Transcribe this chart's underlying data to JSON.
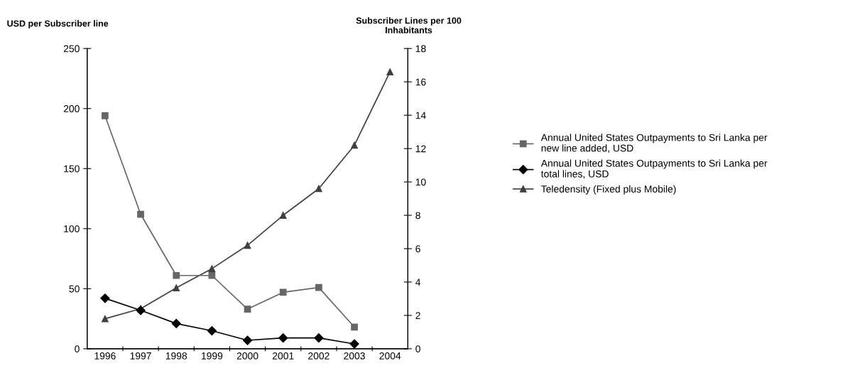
{
  "chart_data": {
    "type": "line",
    "ylabel": "USD per Subscriber line",
    "y2label": "Subscriber Lines per 100 Inhabitants",
    "categories": [
      "1996",
      "1997",
      "1998",
      "1999",
      "2000",
      "2001",
      "2002",
      "2003",
      "2004"
    ],
    "series": [
      {
        "name": "Annual United States Outpayments to Sri Lanka per new line added, USD",
        "color": "#666666",
        "marker": "square",
        "values": [
          194,
          112,
          61,
          61,
          33,
          47,
          51,
          18,
          null
        ]
      },
      {
        "name": "Annual United States Outpayments to Sri Lanka per total lines, USD",
        "color": "#000000",
        "marker": "diamond",
        "values": [
          42,
          32,
          21,
          15,
          7,
          9,
          9,
          4,
          null
        ]
      },
      {
        "name": "Teledensity (Fixed plus Mobile)",
        "color": "#404040",
        "marker": "triangle",
        "axis": "y2",
        "values": [
          1.8,
          2.4,
          3.65,
          4.8,
          6.2,
          8.0,
          9.6,
          12.2,
          16.6
        ]
      }
    ],
    "ylim": [
      0,
      250
    ],
    "yticks": [
      0,
      50,
      100,
      150,
      200,
      250
    ],
    "y2lim": [
      0,
      18
    ],
    "y2ticks": [
      0,
      2,
      4,
      6,
      8,
      10,
      12,
      14,
      16,
      18
    ],
    "grid": false,
    "legend": "right",
    "line_style": "solid"
  }
}
